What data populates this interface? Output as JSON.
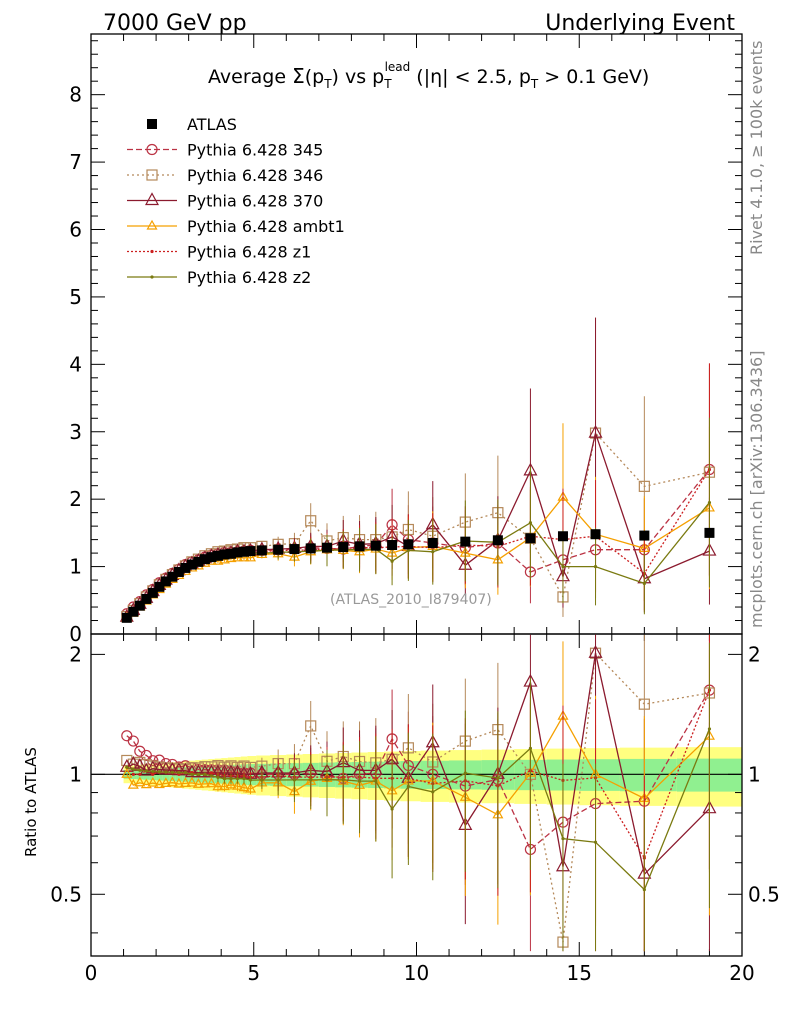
{
  "header": {
    "left": "7000 GeV pp",
    "right": "Underlying Event"
  },
  "side_labels": {
    "rivet": "Rivet 4.1.0, ≥ 100k events",
    "mcplots": "mcplots.cern.ch [arXiv:1306.3436]"
  },
  "reference": "(ATLAS_2010_I879407)",
  "title": {
    "t1": "Average ",
    "sigma": "Σ",
    "t2": "(p",
    "t3": "T",
    "t4": ") vs p",
    "t5": "T",
    "t6": "lead",
    "t7": " (|η| < 2.5, p",
    "t8": "T",
    "t9": " > 0.1 GeV)"
  },
  "ratio_ylabel": "Ratio to ATLAS",
  "legend": [
    {
      "label": "ATLAS",
      "color": "#000000"
    },
    {
      "label": "Pythia 6.428 345",
      "color": "#bb3344"
    },
    {
      "label": "Pythia 6.428 346",
      "color": "#b5895a"
    },
    {
      "label": "Pythia 6.428 370",
      "color": "#8b1a2e"
    },
    {
      "label": "Pythia 6.428 ambt1",
      "color": "#f5a000"
    },
    {
      "label": "Pythia 6.428 z1",
      "color": "#cc2020"
    },
    {
      "label": "Pythia 6.428 z2",
      "color": "#7a7a10"
    }
  ],
  "chart_data": {
    "type": "line",
    "xlim": [
      0,
      20
    ],
    "ylim_main": [
      0,
      8.9
    ],
    "ylim_ratio": [
      0.35,
      2.25
    ],
    "xticks": [
      0,
      5,
      10,
      15,
      20
    ],
    "yticks_main": [
      0,
      1,
      2,
      3,
      4,
      5,
      6,
      7,
      8
    ],
    "yticks_ratio": [
      0.5,
      1,
      2
    ],
    "x": [
      1.1,
      1.3,
      1.5,
      1.7,
      1.9,
      2.1,
      2.3,
      2.5,
      2.7,
      2.9,
      3.1,
      3.3,
      3.5,
      3.7,
      3.9,
      4.1,
      4.3,
      4.5,
      4.7,
      4.9,
      5.25,
      5.75,
      6.25,
      6.75,
      7.25,
      7.75,
      8.25,
      8.75,
      9.25,
      9.75,
      10.5,
      11.5,
      12.5,
      13.5,
      14.5,
      15.5,
      17.0,
      19.0
    ],
    "series": [
      {
        "name": "ATLAS",
        "values": [
          0.24,
          0.33,
          0.42,
          0.52,
          0.61,
          0.7,
          0.78,
          0.85,
          0.92,
          0.98,
          1.03,
          1.07,
          1.11,
          1.14,
          1.16,
          1.18,
          1.19,
          1.21,
          1.22,
          1.23,
          1.24,
          1.25,
          1.26,
          1.27,
          1.28,
          1.29,
          1.3,
          1.31,
          1.32,
          1.33,
          1.35,
          1.37,
          1.39,
          1.42,
          1.45,
          1.48,
          1.46,
          1.5
        ]
      },
      {
        "name": "Pythia 6.428 345",
        "values": [
          0.3,
          0.4,
          0.48,
          0.58,
          0.66,
          0.76,
          0.83,
          0.9,
          0.96,
          1.03,
          1.07,
          1.1,
          1.14,
          1.17,
          1.19,
          1.21,
          1.21,
          1.22,
          1.23,
          1.24,
          1.24,
          1.25,
          1.26,
          1.28,
          1.27,
          1.26,
          1.3,
          1.32,
          1.62,
          1.4,
          1.35,
          1.28,
          1.35,
          0.92,
          1.1,
          1.25,
          1.25,
          2.44
        ]
      },
      {
        "name": "Pythia 6.428 346",
        "values": [
          0.26,
          0.35,
          0.45,
          0.55,
          0.64,
          0.73,
          0.81,
          0.88,
          0.95,
          1.01,
          1.07,
          1.11,
          1.16,
          1.19,
          1.22,
          1.23,
          1.25,
          1.26,
          1.28,
          1.28,
          1.3,
          1.33,
          1.34,
          1.68,
          1.38,
          1.43,
          1.4,
          1.4,
          1.44,
          1.55,
          1.45,
          1.66,
          1.8,
          1.42,
          0.55,
          2.98,
          2.19,
          2.4
        ]
      },
      {
        "name": "Pythia 6.428 370",
        "values": [
          0.25,
          0.35,
          0.44,
          0.53,
          0.63,
          0.72,
          0.8,
          0.87,
          0.94,
          1.0,
          1.04,
          1.08,
          1.12,
          1.15,
          1.17,
          1.19,
          1.2,
          1.22,
          1.22,
          1.23,
          1.25,
          1.26,
          1.27,
          1.3,
          1.3,
          1.38,
          1.33,
          1.34,
          1.44,
          1.3,
          1.62,
          1.02,
          1.39,
          2.42,
          0.85,
          2.98,
          0.82,
          1.23
        ]
      },
      {
        "name": "Pythia 6.428 ambt1",
        "values": [
          0.24,
          0.31,
          0.4,
          0.49,
          0.58,
          0.66,
          0.74,
          0.81,
          0.87,
          0.93,
          0.98,
          1.01,
          1.05,
          1.08,
          1.08,
          1.1,
          1.12,
          1.13,
          1.13,
          1.13,
          1.18,
          1.19,
          1.14,
          1.22,
          1.25,
          1.24,
          1.22,
          1.26,
          1.2,
          1.28,
          1.3,
          1.2,
          1.1,
          1.43,
          2.03,
          1.48,
          1.27,
          1.87
        ]
      },
      {
        "name": "Pythia 6.428 z1",
        "values": [
          0.25,
          0.33,
          0.42,
          0.53,
          0.61,
          0.71,
          0.79,
          0.86,
          0.92,
          0.99,
          1.04,
          1.07,
          1.11,
          1.15,
          1.16,
          1.17,
          1.18,
          1.2,
          1.21,
          1.21,
          1.22,
          1.24,
          1.24,
          1.25,
          1.26,
          1.27,
          1.28,
          1.28,
          1.29,
          1.3,
          1.28,
          1.32,
          1.3,
          1.45,
          1.4,
          1.45,
          0.9,
          2.44
        ]
      },
      {
        "name": "Pythia 6.428 z2",
        "values": [
          0.25,
          0.34,
          0.43,
          0.53,
          0.62,
          0.71,
          0.79,
          0.86,
          0.93,
          0.99,
          1.03,
          1.07,
          1.11,
          1.13,
          1.14,
          1.15,
          1.16,
          1.18,
          1.19,
          1.19,
          1.2,
          1.21,
          1.22,
          1.23,
          1.24,
          1.25,
          1.25,
          1.26,
          1.08,
          1.24,
          1.22,
          1.38,
          1.36,
          1.65,
          1.0,
          1.0,
          0.75,
          1.95
        ]
      }
    ]
  }
}
